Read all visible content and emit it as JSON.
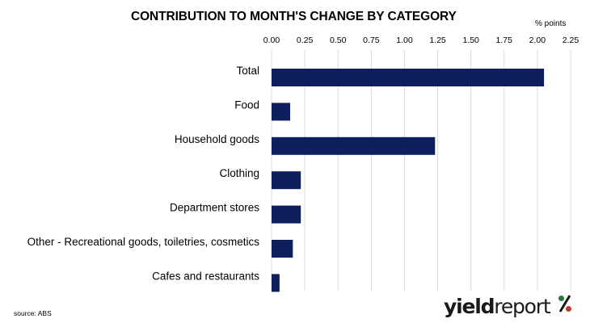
{
  "chart_data": {
    "type": "bar",
    "orientation": "horizontal",
    "title": "CONTRIBUTION TO MONTH'S CHANGE BY CATEGORY",
    "units_label": "% points",
    "x_axis_position": "top",
    "categories": [
      "Total",
      "Food",
      "Household goods",
      "Clothing",
      "Department stores",
      "Other - Recreational goods, toiletries, cosmetics",
      "Cafes and restaurants"
    ],
    "values": [
      2.05,
      0.14,
      1.23,
      0.22,
      0.22,
      0.16,
      0.06
    ],
    "xlim": [
      0,
      2.25
    ],
    "ticks": [
      0,
      0.25,
      0.5,
      0.75,
      1.0,
      1.25,
      1.5,
      1.75,
      2.0,
      2.25
    ],
    "tick_labels": [
      "0.00",
      "0.25",
      "0.50",
      "0.75",
      "1.00",
      "1.25",
      "1.50",
      "1.75",
      "2.00",
      "2.25"
    ],
    "grid": "vertical",
    "bar_color": "#0d1f5c",
    "grid_color": "#d9d9d9"
  },
  "footer": {
    "source": "source: ABS"
  },
  "logo": {
    "part1": "yield",
    "part2": "report",
    "symbol": "%"
  }
}
